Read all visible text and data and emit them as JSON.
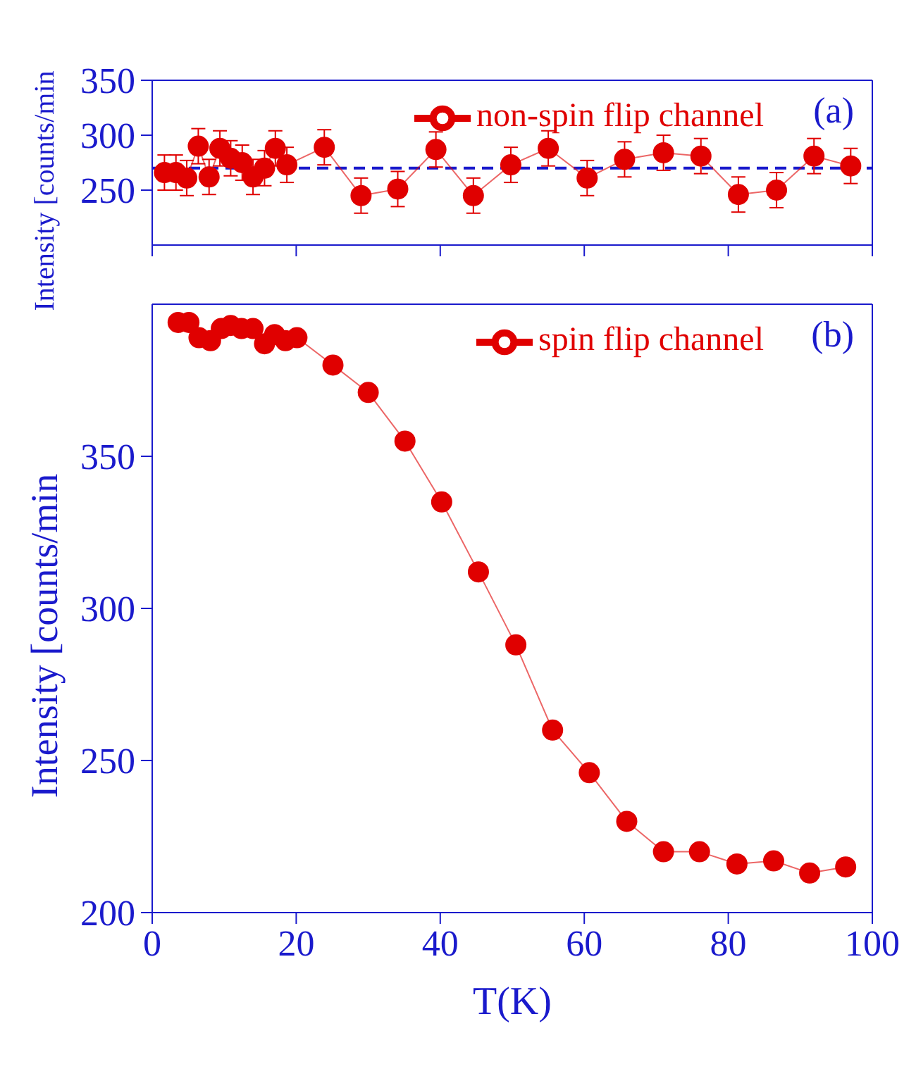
{
  "chart_data": [
    {
      "type": "line",
      "ylabel": "Intensity [counts/min",
      "annotations": [
        "(a)"
      ],
      "xlim": [
        0,
        100
      ],
      "xticks": [
        0,
        20,
        40,
        60,
        80,
        100
      ],
      "ylim": [
        200,
        350
      ],
      "yticks": [
        250,
        300,
        350
      ],
      "tick_labels": "y",
      "legend": "top right",
      "marker": "circle",
      "grid": false,
      "ref_lines": [
        {
          "axis": "y",
          "value": 270,
          "color": "#1a1acc",
          "line_style": "dashed"
        }
      ],
      "series": [
        {
          "name": "non-spin flip channel",
          "color": "#e00000",
          "x": [
            1.7,
            3.3,
            4.8,
            6.4,
            7.9,
            9.4,
            10.9,
            12.5,
            14.0,
            15.6,
            17.1,
            18.7,
            23.9,
            29.0,
            34.1,
            39.4,
            44.6,
            49.8,
            55.0,
            60.4,
            65.6,
            71.0,
            76.2,
            81.4,
            86.7,
            91.9,
            97.0
          ],
          "values": [
            266,
            266,
            261,
            290,
            262,
            288,
            279,
            275,
            262,
            270,
            288,
            273,
            289,
            245,
            251,
            287,
            245,
            273,
            288,
            261,
            278,
            284,
            281,
            246,
            250,
            281,
            272
          ],
          "errors": [
            16,
            16,
            16,
            16,
            16,
            16,
            16,
            16,
            16,
            16,
            16,
            16,
            16,
            16,
            16,
            16,
            16,
            16,
            16,
            16,
            16,
            16,
            16,
            16,
            16,
            16,
            16
          ]
        }
      ]
    },
    {
      "type": "line",
      "ylabel": "Intensity [counts/min",
      "xlabel": "T(K)",
      "annotations": [
        "(b)"
      ],
      "xlim": [
        0,
        100
      ],
      "xticks": [
        0,
        20,
        40,
        60,
        80,
        100
      ],
      "ylim": [
        200,
        400
      ],
      "yticks": [
        200,
        250,
        300,
        350
      ],
      "legend": "top right",
      "marker": "circle",
      "grid": false,
      "series": [
        {
          "name": "spin flip channel",
          "color": "#e00000",
          "x": [
            3.6,
            5.1,
            6.5,
            8.1,
            9.6,
            10.9,
            12.4,
            14.0,
            15.6,
            17.0,
            18.5,
            20.1,
            25.1,
            30.0,
            35.1,
            40.2,
            45.3,
            50.5,
            55.6,
            60.7,
            65.9,
            71.0,
            76.0,
            81.2,
            86.3,
            91.3,
            96.3
          ],
          "values": [
            394,
            394,
            389,
            388,
            392,
            393,
            392,
            392,
            387,
            390,
            388,
            389,
            380,
            371,
            355,
            335,
            312,
            288,
            260,
            246,
            230,
            220,
            220,
            216,
            217,
            213,
            215
          ]
        }
      ]
    }
  ]
}
